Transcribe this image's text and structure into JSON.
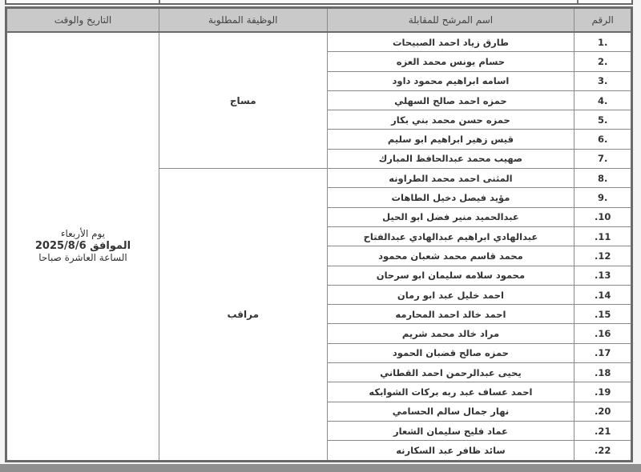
{
  "headers": {
    "number": "الرقم",
    "name": "اسم المرشح للمقابلة",
    "job": "الوظيفة المطلوبة",
    "datetime": "التاريخ والوقت"
  },
  "jobs": [
    "مساج",
    "مراقب"
  ],
  "datetime": {
    "day": "يوم الأربعاء",
    "date_line": "الموافق 2025/8/6",
    "time": "الساعة العاشرة صباحا"
  },
  "rows": [
    {
      "num": "1.",
      "name": "طارق زياد احمد الصبيحات"
    },
    {
      "num": "2.",
      "name": "حسام يونس محمد العزه"
    },
    {
      "num": "3.",
      "name": "اسامه ابراهيم محمود داود"
    },
    {
      "num": "4.",
      "name": "حمزه احمد صالح السهلي"
    },
    {
      "num": "5.",
      "name": "حمزه حسن محمد بني بكار"
    },
    {
      "num": "6.",
      "name": "قيس زهير ابراهيم ابو سليم"
    },
    {
      "num": "7.",
      "name": "صهيب محمد عبدالحافظ المبارك"
    },
    {
      "num": "8.",
      "name": "المثنى احمد محمد الطراونه"
    },
    {
      "num": "9.",
      "name": "مؤيد فيصل دخيل الطاهات"
    },
    {
      "num": ".10",
      "name": "عبدالحميد منير فضل ابو الحيل"
    },
    {
      "num": ".11",
      "name": "عبدالهادي ابراهيم عبدالهادي عبدالفتاح"
    },
    {
      "num": ".12",
      "name": "محمد قاسم محمد شعبان محمود"
    },
    {
      "num": ".13",
      "name": "محمود سلامه سليمان ابو سرحان"
    },
    {
      "num": ".14",
      "name": "احمد خليل عبد ابو رمان"
    },
    {
      "num": ".15",
      "name": "احمد خالد احمد المحارمه"
    },
    {
      "num": ".16",
      "name": "مراد خالد محمد شريم"
    },
    {
      "num": ".17",
      "name": "حمزه صالح قضبان الحمود"
    },
    {
      "num": ".18",
      "name": "يحيى عبدالرحمن احمد القطاني"
    },
    {
      "num": ".19",
      "name": "احمد عساف عبد ربه بركات الشوابكه"
    },
    {
      "num": ".20",
      "name": "نهار جمال سالم الحسامي"
    },
    {
      "num": ".21",
      "name": "عماد فليح سليمان الشعار"
    },
    {
      "num": ".22",
      "name": "سائد ظافر عبد السكارنه"
    }
  ]
}
